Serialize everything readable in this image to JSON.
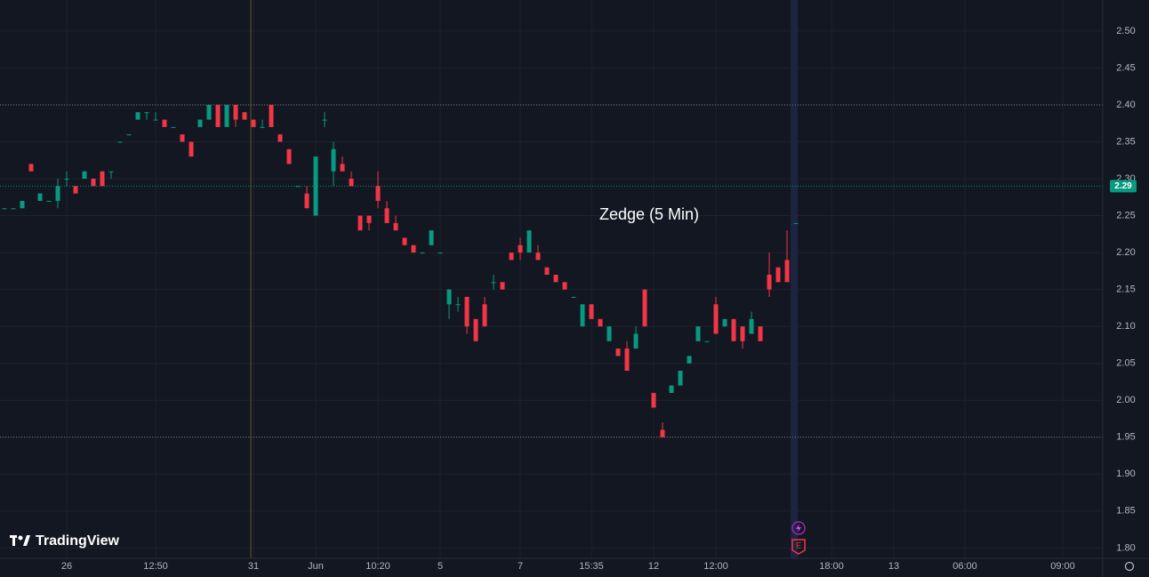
{
  "chart_data": {
    "type": "candlestick",
    "title": "Zedge (5 Min)",
    "brand": "TradingView",
    "up_color": "#089981",
    "down_color": "#f23645",
    "grid": true,
    "ylim": [
      1.786,
      2.542
    ],
    "yticks": [
      {
        "value": 1.8,
        "label": "1.80"
      },
      {
        "value": 1.85,
        "label": "1.85"
      },
      {
        "value": 1.9,
        "label": "1.90"
      },
      {
        "value": 1.95,
        "label": "1.95"
      },
      {
        "value": 2.0,
        "label": "2.00"
      },
      {
        "value": 2.05,
        "label": "2.05"
      },
      {
        "value": 2.1,
        "label": "2.10"
      },
      {
        "value": 2.15,
        "label": "2.15"
      },
      {
        "value": 2.2,
        "label": "2.20"
      },
      {
        "value": 2.25,
        "label": "2.25"
      },
      {
        "value": 2.3,
        "label": "2.30"
      },
      {
        "value": 2.35,
        "label": "2.35"
      },
      {
        "value": 2.4,
        "label": "2.40"
      },
      {
        "value": 2.45,
        "label": "2.45"
      },
      {
        "value": 2.5,
        "label": "2.50"
      }
    ],
    "last_price": {
      "value": 2.29,
      "label": "2.29"
    },
    "price_lines": [
      2.4,
      2.29,
      1.95
    ],
    "event_marker": "E",
    "categories": [
      null,
      null,
      null,
      null,
      null,
      null,
      null,
      "26",
      null,
      null,
      null,
      null,
      null,
      null,
      null,
      null,
      null,
      "12:50",
      null,
      null,
      null,
      null,
      null,
      null,
      null,
      null,
      null,
      null,
      "31",
      null,
      null,
      null,
      null,
      null,
      null,
      "Jun",
      null,
      null,
      null,
      null,
      null,
      null,
      "10:20",
      null,
      null,
      null,
      null,
      null,
      null,
      "5",
      null,
      null,
      null,
      null,
      null,
      null,
      null,
      null,
      "7",
      null,
      null,
      null,
      null,
      null,
      null,
      null,
      "15:35",
      null,
      null,
      null,
      null,
      null,
      null,
      "12",
      null,
      null,
      null,
      null,
      null,
      null,
      "12:00",
      null,
      null,
      null,
      null,
      null,
      null,
      null,
      null,
      null,
      null,
      null,
      null,
      "18:00",
      null,
      null,
      null,
      null,
      null,
      null,
      "13",
      null,
      null,
      null,
      null,
      null,
      null,
      null,
      "06:00",
      null,
      null,
      null,
      null,
      null,
      null,
      null,
      null,
      null,
      null,
      "09:00",
      null,
      null,
      null,
      null
    ],
    "ohlc": [
      [
        2.26,
        2.26,
        2.26,
        2.26
      ],
      [
        2.26,
        2.26,
        2.26,
        2.26
      ],
      [
        2.26,
        2.27,
        2.26,
        2.27
      ],
      [
        2.32,
        2.32,
        2.31,
        2.31
      ],
      [
        2.27,
        2.28,
        2.27,
        2.28
      ],
      [
        2.27,
        2.27,
        2.27,
        2.27
      ],
      [
        2.27,
        2.3,
        2.26,
        2.29
      ],
      [
        2.3,
        2.31,
        2.29,
        2.3
      ],
      [
        2.29,
        2.29,
        2.28,
        2.28
      ],
      [
        2.3,
        2.31,
        2.3,
        2.31
      ],
      [
        2.3,
        2.3,
        2.29,
        2.29
      ],
      [
        2.31,
        2.31,
        2.29,
        2.29
      ],
      [
        2.31,
        2.31,
        2.3,
        2.31
      ],
      [
        2.35,
        2.35,
        2.35,
        2.35
      ],
      [
        2.36,
        2.36,
        2.36,
        2.36
      ],
      [
        2.38,
        2.39,
        2.38,
        2.39
      ],
      [
        2.39,
        2.39,
        2.38,
        2.39
      ],
      [
        2.38,
        2.39,
        2.38,
        2.38
      ],
      [
        2.38,
        2.38,
        2.37,
        2.37
      ],
      [
        2.37,
        2.37,
        2.37,
        2.37
      ],
      [
        2.36,
        2.36,
        2.35,
        2.35
      ],
      [
        2.35,
        2.35,
        2.33,
        2.33
      ],
      [
        2.37,
        2.38,
        2.37,
        2.38
      ],
      [
        2.38,
        2.4,
        2.38,
        2.4
      ],
      [
        2.4,
        2.4,
        2.37,
        2.37
      ],
      [
        2.37,
        2.4,
        2.37,
        2.4
      ],
      [
        2.4,
        2.4,
        2.37,
        2.38
      ],
      [
        2.39,
        2.39,
        2.38,
        2.38
      ],
      [
        2.38,
        2.38,
        2.37,
        2.37
      ],
      [
        2.37,
        2.38,
        2.37,
        2.37
      ],
      [
        2.4,
        2.4,
        2.37,
        2.37
      ],
      [
        2.36,
        2.36,
        2.35,
        2.35
      ],
      [
        2.34,
        2.34,
        2.32,
        2.32
      ],
      [
        2.29,
        2.29,
        2.29,
        2.29
      ],
      [
        2.28,
        2.29,
        2.26,
        2.26
      ],
      [
        2.25,
        2.33,
        2.25,
        2.33
      ],
      [
        2.38,
        2.39,
        2.37,
        2.38
      ],
      [
        2.31,
        2.35,
        2.29,
        2.34
      ],
      [
        2.32,
        2.33,
        2.31,
        2.31
      ],
      [
        2.3,
        2.31,
        2.29,
        2.29
      ],
      [
        2.25,
        2.25,
        2.23,
        2.23
      ],
      [
        2.25,
        2.25,
        2.23,
        2.24
      ],
      [
        2.29,
        2.31,
        2.26,
        2.27
      ],
      [
        2.26,
        2.27,
        2.24,
        2.24
      ],
      [
        2.24,
        2.25,
        2.23,
        2.23
      ],
      [
        2.22,
        2.22,
        2.21,
        2.21
      ],
      [
        2.21,
        2.21,
        2.2,
        2.2
      ],
      [
        2.2,
        2.2,
        2.2,
        2.2
      ],
      [
        2.21,
        2.23,
        2.21,
        2.23
      ],
      [
        2.2,
        2.2,
        2.2,
        2.2
      ],
      [
        2.13,
        2.15,
        2.11,
        2.15
      ],
      [
        2.13,
        2.14,
        2.12,
        2.13
      ],
      [
        2.14,
        2.14,
        2.09,
        2.1
      ],
      [
        2.11,
        2.11,
        2.08,
        2.08
      ],
      [
        2.13,
        2.14,
        2.1,
        2.1
      ],
      [
        2.16,
        2.17,
        2.15,
        2.16
      ],
      [
        2.16,
        2.16,
        2.15,
        2.15
      ],
      [
        2.2,
        2.2,
        2.19,
        2.19
      ],
      [
        2.21,
        2.22,
        2.19,
        2.2
      ],
      [
        2.2,
        2.23,
        2.2,
        2.23
      ],
      [
        2.2,
        2.21,
        2.19,
        2.19
      ],
      [
        2.18,
        2.18,
        2.17,
        2.17
      ],
      [
        2.17,
        2.17,
        2.16,
        2.16
      ],
      [
        2.16,
        2.16,
        2.15,
        2.15
      ],
      [
        2.14,
        2.14,
        2.14,
        2.14
      ],
      [
        2.1,
        2.13,
        2.1,
        2.13
      ],
      [
        2.13,
        2.13,
        2.11,
        2.11
      ],
      [
        2.11,
        2.11,
        2.1,
        2.1
      ],
      [
        2.08,
        2.1,
        2.08,
        2.1
      ],
      [
        2.07,
        2.07,
        2.06,
        2.06
      ],
      [
        2.07,
        2.08,
        2.04,
        2.04
      ],
      [
        2.07,
        2.1,
        2.07,
        2.09
      ],
      [
        2.15,
        2.15,
        2.1,
        2.1
      ],
      [
        2.01,
        2.01,
        1.99,
        1.99
      ],
      [
        1.96,
        1.97,
        1.95,
        1.95
      ],
      [
        2.01,
        2.02,
        2.01,
        2.02
      ],
      [
        2.02,
        2.04,
        2.02,
        2.04
      ],
      [
        2.05,
        2.06,
        2.05,
        2.06
      ],
      [
        2.08,
        2.1,
        2.08,
        2.1
      ],
      [
        2.08,
        2.08,
        2.08,
        2.08
      ],
      [
        2.13,
        2.14,
        2.09,
        2.09
      ],
      [
        2.1,
        2.11,
        2.1,
        2.11
      ],
      [
        2.11,
        2.11,
        2.08,
        2.08
      ],
      [
        2.1,
        2.1,
        2.07,
        2.08
      ],
      [
        2.09,
        2.12,
        2.09,
        2.11
      ],
      [
        2.1,
        2.1,
        2.08,
        2.08
      ],
      [
        2.17,
        2.2,
        2.14,
        2.15
      ],
      [
        2.18,
        2.18,
        2.16,
        2.16
      ],
      [
        2.19,
        2.23,
        2.16,
        2.16
      ],
      [
        2.24,
        2.24,
        2.24,
        2.24
      ],
      null,
      null,
      null,
      null,
      null,
      null,
      null,
      null,
      null,
      null,
      null,
      null,
      null,
      null,
      null,
      null,
      null,
      null,
      null,
      null,
      null,
      null,
      null,
      null,
      null,
      null,
      null,
      null,
      null,
      null,
      null,
      null,
      null,
      null
    ]
  }
}
